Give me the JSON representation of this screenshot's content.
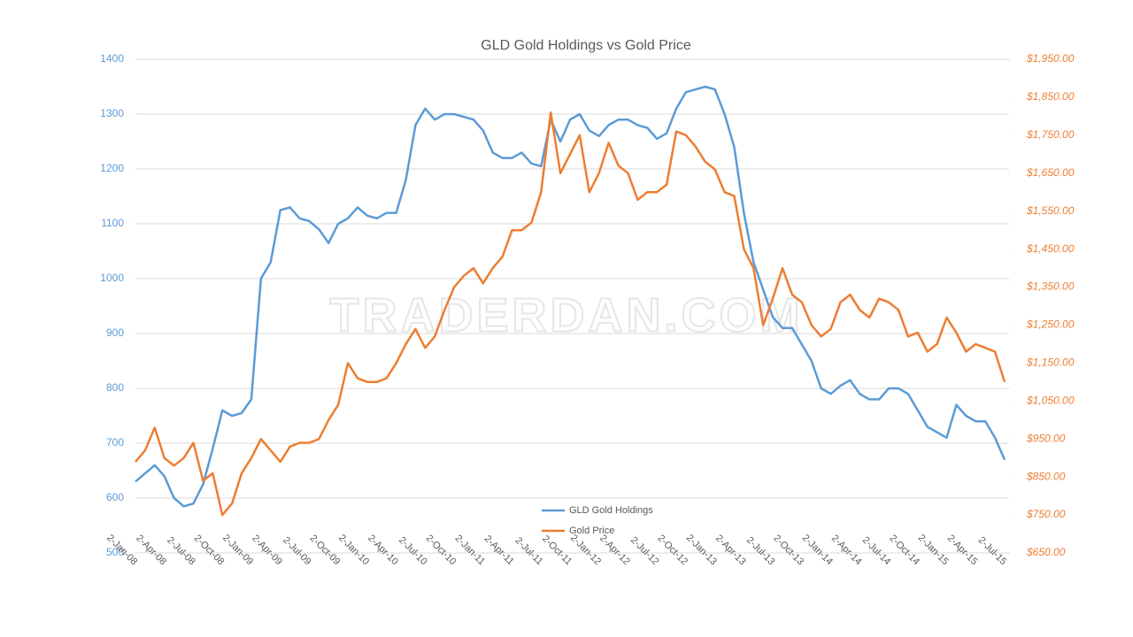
{
  "chart_data": {
    "type": "line",
    "title": "GLD Gold Holdings vs Gold Price",
    "watermark": "TRADERDAN.COM",
    "categories": [
      "2-Jan-08",
      null,
      null,
      "2-Apr-08",
      null,
      null,
      "2-Jul-08",
      null,
      null,
      "2-Oct-08",
      null,
      null,
      "2-Jan-09",
      null,
      null,
      "2-Apr-09",
      null,
      null,
      "2-Jul-09",
      null,
      null,
      "2-Oct-09",
      null,
      null,
      "2-Jan-10",
      null,
      null,
      "2-Apr-10",
      null,
      null,
      "2-Jul-10",
      null,
      null,
      "2-Oct-10",
      null,
      null,
      "2-Jan-11",
      null,
      null,
      "2-Apr-11",
      null,
      null,
      "2-Jul-11",
      null,
      null,
      "2-Oct-11",
      null,
      null,
      "2-Jan-12",
      null,
      null,
      "2-Apr-12",
      null,
      null,
      "2-Jul-12",
      null,
      null,
      "2-Oct-12",
      null,
      null,
      "2-Jan-13",
      null,
      null,
      "2-Apr-13",
      null,
      null,
      "2-Jul-13",
      null,
      null,
      "2-Oct-13",
      null,
      null,
      "2-Jan-14",
      null,
      null,
      "2-Apr-14",
      null,
      null,
      "2-Jul-14",
      null,
      null,
      "2-Oct-14",
      null,
      null,
      "2-Jan-15",
      null,
      null,
      "2-Apr-15",
      null,
      null,
      "2-Jul-15"
    ],
    "series": [
      {
        "name": "GLD Gold Holdings",
        "color": "#5b9bd5",
        "axis": "y",
        "values": [
          630,
          645,
          660,
          640,
          600,
          585,
          590,
          625,
          690,
          760,
          750,
          755,
          780,
          1000,
          1030,
          1125,
          1130,
          1110,
          1105,
          1090,
          1065,
          1100,
          1110,
          1130,
          1115,
          1110,
          1120,
          1120,
          1180,
          1280,
          1310,
          1290,
          1300,
          1300,
          1295,
          1290,
          1270,
          1230,
          1220,
          1220,
          1230,
          1210,
          1205,
          1290,
          1250,
          1290,
          1300,
          1270,
          1260,
          1280,
          1290,
          1290,
          1280,
          1275,
          1255,
          1265,
          1310,
          1340,
          1345,
          1350,
          1345,
          1300,
          1240,
          1120,
          1030,
          980,
          930,
          910,
          910,
          880,
          850,
          800,
          790,
          805,
          815,
          790,
          780,
          780,
          800,
          800,
          790,
          760,
          730,
          720,
          710,
          770,
          750,
          740,
          740,
          710,
          670
        ]
      },
      {
        "name": "Gold Price",
        "color": "#ed7d31",
        "axis": "y2",
        "values": [
          890,
          920,
          980,
          900,
          880,
          900,
          940,
          840,
          860,
          750,
          780,
          860,
          900,
          950,
          920,
          890,
          930,
          940,
          940,
          950,
          1000,
          1040,
          1150,
          1110,
          1100,
          1100,
          1110,
          1150,
          1200,
          1240,
          1190,
          1220,
          1290,
          1350,
          1380,
          1400,
          1360,
          1400,
          1430,
          1500,
          1500,
          1520,
          1600,
          1810,
          1650,
          1700,
          1750,
          1600,
          1650,
          1730,
          1670,
          1650,
          1580,
          1600,
          1600,
          1620,
          1760,
          1750,
          1720,
          1680,
          1660,
          1600,
          1590,
          1450,
          1400,
          1250,
          1320,
          1400,
          1330,
          1310,
          1250,
          1220,
          1240,
          1310,
          1330,
          1290,
          1270,
          1320,
          1310,
          1290,
          1220,
          1230,
          1180,
          1200,
          1270,
          1230,
          1180,
          1200,
          1190,
          1180,
          1100
        ]
      }
    ],
    "ylim": [
      500,
      1400
    ],
    "yticks": [
      500,
      600,
      700,
      800,
      900,
      1000,
      1100,
      1200,
      1300,
      1400
    ],
    "y2lim": [
      650,
      1950
    ],
    "y2ticks": [
      {
        "value": 650,
        "label": "$650.00"
      },
      {
        "value": 750,
        "label": "$750.00"
      },
      {
        "value": 850,
        "label": "$850.00"
      },
      {
        "value": 950,
        "label": "$950.00"
      },
      {
        "value": 1050,
        "label": "$1,050.00"
      },
      {
        "value": 1150,
        "label": "$1,150.00"
      },
      {
        "value": 1250,
        "label": "$1,250.00"
      },
      {
        "value": 1350,
        "label": "$1,350.00"
      },
      {
        "value": 1450,
        "label": "$1,450.00"
      },
      {
        "value": 1550,
        "label": "$1,550.00"
      },
      {
        "value": 1650,
        "label": "$1,650.00"
      },
      {
        "value": 1750,
        "label": "$1,750.00"
      },
      {
        "value": 1850,
        "label": "$1,850.00"
      },
      {
        "value": 1950,
        "label": "$1,950.00"
      }
    ],
    "grid": true,
    "legend": "bottom"
  }
}
